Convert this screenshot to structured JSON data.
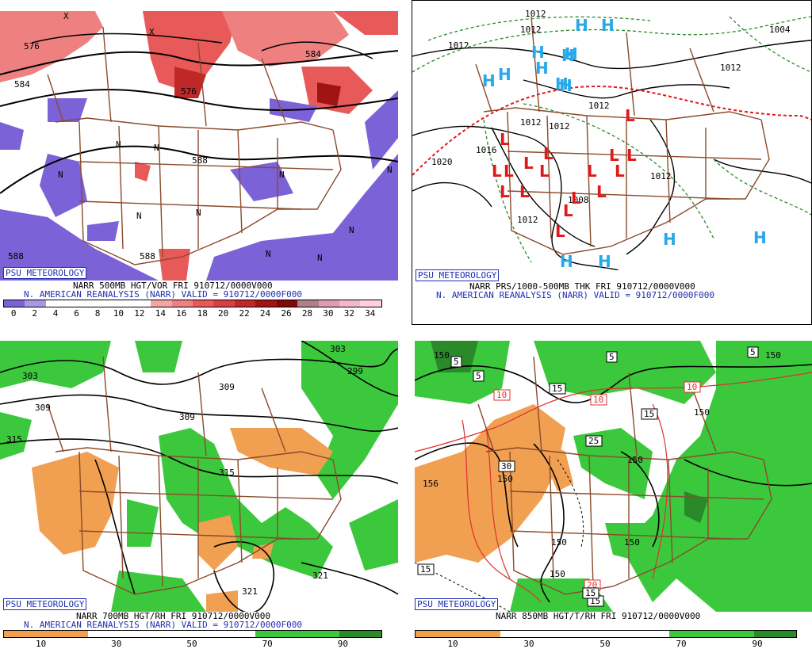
{
  "panels": {
    "p500": {
      "credit": "PSU METEOROLOGY",
      "title_line": "NARR 500MB HGT/VOR FRI 910712/0000V000",
      "subtitle_line": "N. AMERICAN REANALYSIS (NARR) VALID = 910712/0000F000",
      "contour_labels": [
        "576",
        "584",
        "576",
        "588",
        "588",
        "588",
        "584"
      ],
      "scale_ticks": [
        "0",
        "2",
        "4",
        "6",
        "8",
        "10",
        "12",
        "14",
        "16",
        "18",
        "20",
        "22",
        "24",
        "26",
        "28",
        "30",
        "32",
        "34"
      ],
      "scale_colors": [
        "#7b62d6",
        "#a898e6",
        "#ffffff",
        "#ffffff",
        "#ffffff",
        "#ffffff",
        "#ffffff",
        "#f4a6a6",
        "#ee8080",
        "#e85a5a",
        "#d84040",
        "#c02828",
        "#a01414",
        "#7e0a0a",
        "#b0808a",
        "#d8a0b0",
        "#f0b8c8",
        "#ffd0e0"
      ],
      "vorticity_marks": [
        "N",
        "N",
        "N",
        "N",
        "N",
        "N",
        "N",
        "N",
        "N",
        "N",
        "X",
        "X"
      ]
    },
    "p1000": {
      "credit": "PSU METEOROLOGY",
      "title_line": "NARR PRS/1000-500MB THK FRI 910712/0000V000",
      "subtitle_line": "N. AMERICAN REANALYSIS (NARR) VALID = 910712/0000F000",
      "isobar_labels": [
        "1012",
        "1012",
        "1012",
        "1012",
        "1012",
        "1012",
        "1012",
        "1012",
        "1012",
        "1020",
        "1004",
        "1016",
        "1008"
      ],
      "high_marker": "H",
      "low_marker": "L",
      "high_count": 14,
      "low_count": 17,
      "colors": {
        "high": "#28a8e8",
        "low": "#e01818",
        "thickness_cold": "#2a8a2a",
        "thickness_warm": "#e01818"
      }
    },
    "p700": {
      "credit": "PSU METEOROLOGY",
      "title_line": "NARR 700MB HGT/RH FRI 910712/0000V000",
      "subtitle_line": "N. AMERICAN REANALYSIS (NARR) VALID = 910712/0000F000",
      "contour_labels": [
        "303",
        "309",
        "315",
        "303",
        "309",
        "309",
        "299",
        "315",
        "321",
        "321"
      ],
      "scale_ticks": [
        "10",
        "30",
        "50",
        "70",
        "90"
      ],
      "scale_colors": [
        "#f0a050",
        "#f0a050",
        "#ffffff",
        "#ffffff",
        "#ffffff",
        "#ffffff",
        "#3cc83c",
        "#3cc83c",
        "#2a8a2a"
      ]
    },
    "p850": {
      "credit": "PSU METEOROLOGY",
      "title_line": "NARR 850MB HGT/T/RH FRI 910712/0000V000",
      "contour_labels": [
        "150",
        "156",
        "150",
        "150",
        "150",
        "150",
        "150",
        "150",
        "150"
      ],
      "temp_labels": [
        "5",
        "5",
        "5",
        "5",
        "10",
        "10",
        "10",
        "15",
        "15",
        "15",
        "15",
        "25",
        "30",
        "20",
        "15"
      ],
      "scale_ticks": [
        "10",
        "30",
        "50",
        "70",
        "90"
      ],
      "scale_colors": [
        "#f0a050",
        "#f0a050",
        "#ffffff",
        "#ffffff",
        "#ffffff",
        "#ffffff",
        "#3cc83c",
        "#3cc83c",
        "#2a8a2a"
      ]
    }
  },
  "colors": {
    "border": "#8b4a2b",
    "caption_blue": "#1f2fb0",
    "vort_pos": "#e85a5a",
    "vort_neg": "#7b62d6",
    "rh_dry": "#f0a050",
    "rh_moist": "#3cc83c"
  }
}
